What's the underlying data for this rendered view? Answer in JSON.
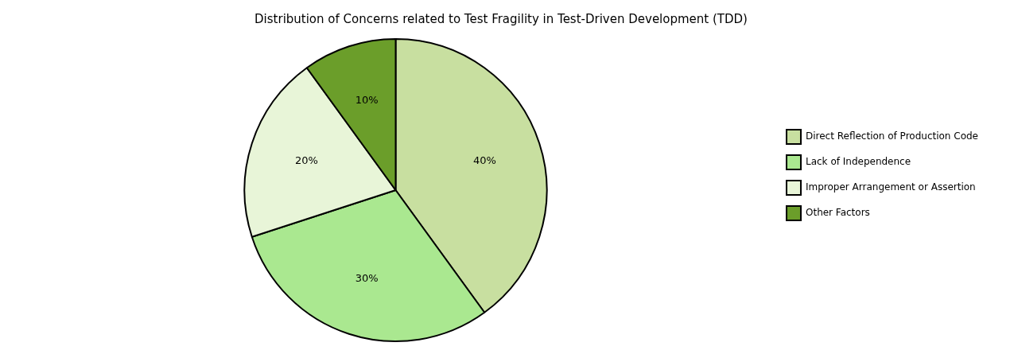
{
  "chart_data": {
    "type": "pie",
    "title": "Distribution of Concerns related to Test Fragility in Test-Driven Development (TDD)",
    "categories": [
      "Direct Reflection of Production Code",
      "Lack of Independence",
      "Improper Arrangement or Assertion",
      "Other Factors"
    ],
    "values": [
      40,
      30,
      20,
      10
    ],
    "value_labels": [
      "40%",
      "30%",
      "20%",
      "10%"
    ],
    "colors": [
      "#c8dfa0",
      "#aae890",
      "#e8f5d8",
      "#6b9e2a"
    ],
    "data_labels": true,
    "legend": "right"
  }
}
